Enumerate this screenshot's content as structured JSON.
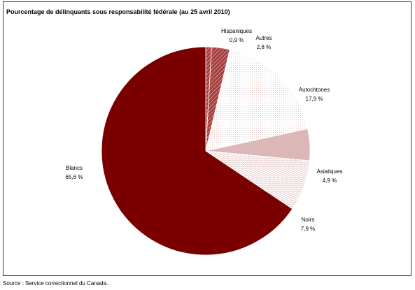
{
  "chart_data": {
    "type": "pie",
    "title": "Pourcentage de délinquants sous responsabilité fédérale (au 25 avril 2010)",
    "slices": [
      {
        "name": "Hispaniques",
        "value": 0.9,
        "label": "0,9 %",
        "color": "#a83a3a",
        "pattern": "hatch-dark"
      },
      {
        "name": "Autres",
        "value": 2.8,
        "label": "2,8 %",
        "color": "#a83a3a",
        "pattern": "hatch-dark"
      },
      {
        "name": "Autochtones",
        "value": 17.9,
        "label": "17,9 %",
        "color": "#f3e6e6",
        "pattern": "dots-light"
      },
      {
        "name": "Asiatiques",
        "value": 4.9,
        "label": "4,9 %",
        "color": "#dcb7b7",
        "pattern": "solid"
      },
      {
        "name": "Noirs",
        "value": 7.9,
        "label": "7,9 %",
        "color": "#e8cccc",
        "pattern": "waves"
      },
      {
        "name": "Blancs",
        "value": 65.6,
        "label": "65,6 %",
        "color": "#7a0000",
        "pattern": "solid"
      }
    ],
    "start": "top",
    "direction": "clockwise",
    "legend": "none"
  },
  "footer": {
    "source": "Source : Service correctionnel du Canada."
  }
}
